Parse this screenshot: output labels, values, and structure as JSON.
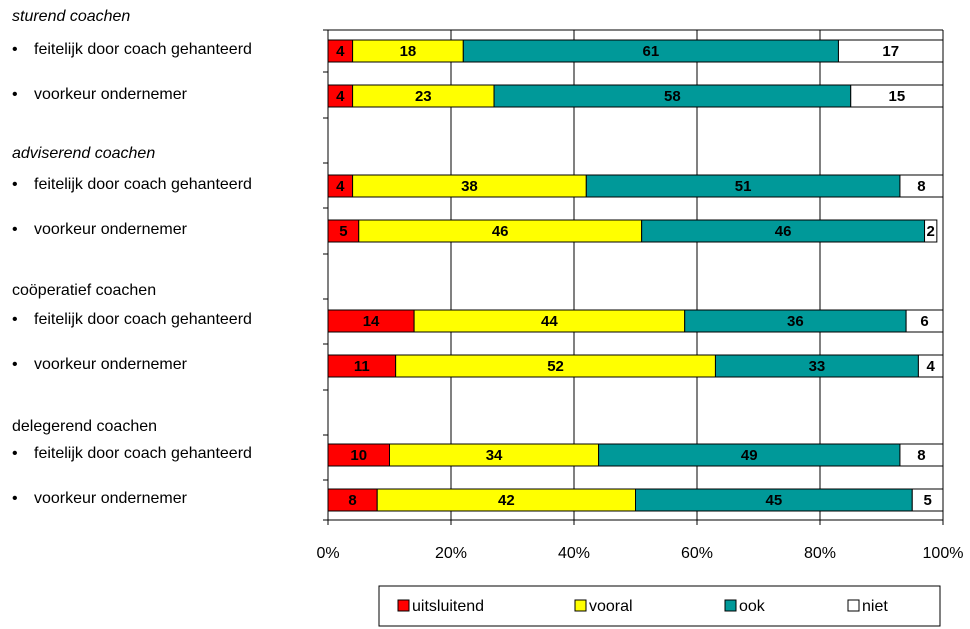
{
  "chart_data": {
    "type": "bar",
    "orientation": "horizontal",
    "stacked": true,
    "xlim": [
      0,
      100
    ],
    "xticks": [
      "0%",
      "20%",
      "40%",
      "60%",
      "80%",
      "100%"
    ],
    "grid": true,
    "legend_position": "bottom",
    "series": [
      {
        "name": "uitsluitend",
        "color": "#ff0000"
      },
      {
        "name": "vooral",
        "color": "#ffff00"
      },
      {
        "name": "ook",
        "color": "#009999"
      },
      {
        "name": "niet",
        "color": "#ffffff"
      }
    ],
    "groups": [
      {
        "label": "sturend coachen",
        "italic": true,
        "rows": [
          {
            "label": "feitelijk door coach gehanteerd",
            "values": [
              4,
              18,
              61,
              17
            ]
          },
          {
            "label": "voorkeur ondernemer",
            "values": [
              4,
              23,
              58,
              15
            ]
          }
        ]
      },
      {
        "label": "adviserend coachen",
        "italic": true,
        "rows": [
          {
            "label": "feitelijk door coach gehanteerd",
            "values": [
              4,
              38,
              51,
              8
            ]
          },
          {
            "label": "voorkeur ondernemer",
            "values": [
              5,
              46,
              46,
              2
            ]
          }
        ]
      },
      {
        "label": "coöperatief coachen",
        "italic": false,
        "rows": [
          {
            "label": "feitelijk door coach gehanteerd",
            "values": [
              14,
              44,
              36,
              6
            ]
          },
          {
            "label": "voorkeur ondernemer",
            "values": [
              11,
              52,
              33,
              4
            ]
          }
        ]
      },
      {
        "label": "delegerend coachen",
        "italic": false,
        "rows": [
          {
            "label": "feitelijk door coach gehanteerd",
            "values": [
              10,
              34,
              49,
              8
            ]
          },
          {
            "label": "voorkeur ondernemer",
            "values": [
              8,
              42,
              45,
              5
            ]
          }
        ]
      }
    ]
  }
}
